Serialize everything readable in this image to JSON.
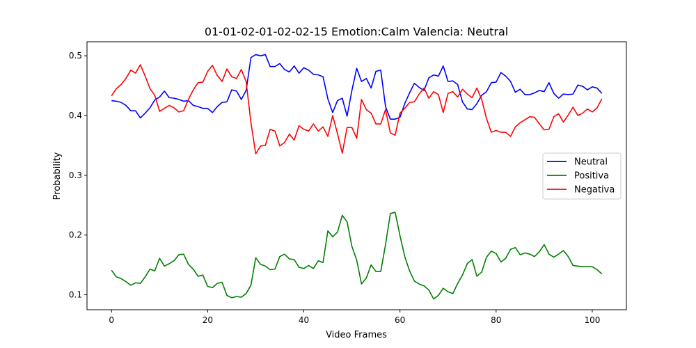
{
  "chart_data": {
    "type": "line",
    "title": "01-01-02-01-02-02-15 Emotion:Calm Valencia: Neutral",
    "xlabel": "Video Frames",
    "ylabel": "Probability",
    "xlim": [
      -5.1,
      107.1
    ],
    "ylim": [
      0.075,
      0.5235
    ],
    "xticks": [
      0,
      20,
      40,
      60,
      80,
      100
    ],
    "yticks": [
      0.1,
      0.2,
      0.3,
      0.4,
      0.5
    ],
    "ytick_labels": [
      "0.1",
      "0.2",
      "0.3",
      "0.4",
      "0.5"
    ],
    "grid": false,
    "legend_position": "center-right",
    "x": [
      0,
      1,
      2,
      3,
      4,
      5,
      6,
      7,
      8,
      9,
      10,
      11,
      12,
      13,
      14,
      15,
      16,
      17,
      18,
      19,
      20,
      21,
      22,
      23,
      24,
      25,
      26,
      27,
      28,
      29,
      30,
      31,
      32,
      33,
      34,
      35,
      36,
      37,
      38,
      39,
      40,
      41,
      42,
      43,
      44,
      45,
      46,
      47,
      48,
      49,
      50,
      51,
      52,
      53,
      54,
      55,
      56,
      57,
      58,
      59,
      60,
      61,
      62,
      63,
      64,
      65,
      66,
      67,
      68,
      69,
      70,
      71,
      72,
      73,
      74,
      75,
      76,
      77,
      78,
      79,
      80,
      81,
      82,
      83,
      84,
      85,
      86,
      87,
      88,
      89,
      90,
      91,
      92,
      93,
      94,
      95,
      96,
      97,
      98,
      99,
      100,
      101,
      102
    ],
    "series": [
      {
        "name": "Neutral",
        "color": "#0000ff",
        "values": [
          0.425,
          0.424,
          0.422,
          0.417,
          0.408,
          0.408,
          0.396,
          0.404,
          0.413,
          0.426,
          0.431,
          0.441,
          0.43,
          0.429,
          0.427,
          0.424,
          0.425,
          0.417,
          0.415,
          0.412,
          0.412,
          0.405,
          0.415,
          0.422,
          0.423,
          0.443,
          0.441,
          0.427,
          0.442,
          0.497,
          0.502,
          0.5,
          0.502,
          0.482,
          0.482,
          0.487,
          0.477,
          0.473,
          0.483,
          0.471,
          0.48,
          0.476,
          0.469,
          0.468,
          0.465,
          0.428,
          0.405,
          0.425,
          0.429,
          0.399,
          0.442,
          0.479,
          0.457,
          0.462,
          0.446,
          0.474,
          0.476,
          0.415,
          0.394,
          0.394,
          0.397,
          0.42,
          0.438,
          0.454,
          0.447,
          0.442,
          0.463,
          0.468,
          0.466,
          0.483,
          0.457,
          0.458,
          0.452,
          0.423,
          0.411,
          0.41,
          0.42,
          0.434,
          0.44,
          0.455,
          0.456,
          0.472,
          0.466,
          0.457,
          0.439,
          0.444,
          0.435,
          0.435,
          0.438,
          0.442,
          0.44,
          0.455,
          0.437,
          0.429,
          0.436,
          0.435,
          0.436,
          0.451,
          0.449,
          0.443,
          0.448,
          0.446,
          0.437
        ]
      },
      {
        "name": "Positiva",
        "color": "#008000",
        "values": [
          0.141,
          0.13,
          0.127,
          0.122,
          0.116,
          0.12,
          0.119,
          0.13,
          0.143,
          0.14,
          0.161,
          0.148,
          0.152,
          0.157,
          0.167,
          0.168,
          0.151,
          0.143,
          0.131,
          0.133,
          0.114,
          0.112,
          0.119,
          0.121,
          0.099,
          0.095,
          0.097,
          0.096,
          0.102,
          0.116,
          0.162,
          0.151,
          0.148,
          0.142,
          0.143,
          0.164,
          0.168,
          0.16,
          0.159,
          0.146,
          0.144,
          0.149,
          0.144,
          0.157,
          0.154,
          0.207,
          0.197,
          0.205,
          0.233,
          0.222,
          0.181,
          0.158,
          0.118,
          0.128,
          0.15,
          0.139,
          0.139,
          0.184,
          0.236,
          0.238,
          0.199,
          0.164,
          0.14,
          0.123,
          0.118,
          0.115,
          0.108,
          0.093,
          0.099,
          0.111,
          0.105,
          0.102,
          0.119,
          0.133,
          0.152,
          0.159,
          0.131,
          0.138,
          0.163,
          0.173,
          0.169,
          0.155,
          0.161,
          0.176,
          0.179,
          0.167,
          0.17,
          0.168,
          0.164,
          0.172,
          0.184,
          0.168,
          0.163,
          0.168,
          0.174,
          0.164,
          0.149,
          0.148,
          0.147,
          0.147,
          0.147,
          0.142,
          0.135
        ]
      },
      {
        "name": "Negativa",
        "color": "#ff0000",
        "values": [
          0.433,
          0.445,
          0.452,
          0.462,
          0.476,
          0.471,
          0.485,
          0.466,
          0.445,
          0.434,
          0.407,
          0.412,
          0.417,
          0.413,
          0.406,
          0.408,
          0.427,
          0.443,
          0.455,
          0.456,
          0.474,
          0.484,
          0.467,
          0.457,
          0.478,
          0.465,
          0.462,
          0.477,
          0.457,
          0.388,
          0.336,
          0.349,
          0.35,
          0.377,
          0.374,
          0.349,
          0.355,
          0.369,
          0.359,
          0.383,
          0.377,
          0.374,
          0.386,
          0.374,
          0.381,
          0.365,
          0.4,
          0.37,
          0.337,
          0.38,
          0.38,
          0.362,
          0.427,
          0.41,
          0.404,
          0.386,
          0.386,
          0.41,
          0.371,
          0.367,
          0.404,
          0.412,
          0.422,
          0.423,
          0.436,
          0.446,
          0.429,
          0.44,
          0.435,
          0.405,
          0.437,
          0.44,
          0.431,
          0.444,
          0.436,
          0.43,
          0.446,
          0.427,
          0.395,
          0.372,
          0.375,
          0.372,
          0.372,
          0.365,
          0.381,
          0.388,
          0.393,
          0.398,
          0.397,
          0.386,
          0.376,
          0.377,
          0.398,
          0.403,
          0.389,
          0.401,
          0.414,
          0.4,
          0.404,
          0.411,
          0.406,
          0.413,
          0.428
        ]
      }
    ]
  }
}
